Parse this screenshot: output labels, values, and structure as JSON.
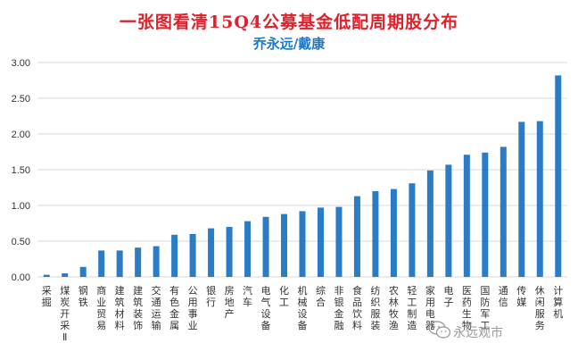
{
  "header": {
    "title": "一张图看清15Q4公募基金低配周期股分布",
    "subtitle": "乔永远/戴康"
  },
  "watermark": {
    "text": "永远观市"
  },
  "colors": {
    "bar": "#2a7cc7",
    "grid": "#d9d9d9",
    "title": "#e0202a",
    "subtitle": "#1c78c8"
  },
  "chart_data": {
    "type": "bar",
    "categories": [
      "采掘",
      "煤炭开采Ⅱ",
      "钢铁",
      "商业贸易",
      "建筑材料",
      "建筑装饰",
      "交通运输",
      "有色金属",
      "公用事业",
      "银行",
      "房地产",
      "汽车",
      "电气设备",
      "化工",
      "机械设备",
      "综合",
      "非银金融",
      "食品饮料",
      "纺织服装",
      "农林牧渔",
      "轻工制造",
      "家用电器",
      "电子",
      "医药生物",
      "国防军工",
      "通信",
      "传媒",
      "休闲服务",
      "计算机"
    ],
    "values": [
      0.03,
      0.05,
      0.14,
      0.37,
      0.37,
      0.41,
      0.43,
      0.59,
      0.6,
      0.68,
      0.7,
      0.78,
      0.84,
      0.88,
      0.92,
      0.97,
      0.98,
      1.13,
      1.2,
      1.23,
      1.31,
      1.49,
      1.57,
      1.71,
      1.74,
      1.82,
      2.17,
      2.18,
      2.82
    ],
    "ylim": [
      0,
      3
    ],
    "yticks": [
      "0.00",
      "0.50",
      "1.00",
      "1.50",
      "2.00",
      "2.50",
      "3.00"
    ],
    "grid": true,
    "legend": "none"
  }
}
